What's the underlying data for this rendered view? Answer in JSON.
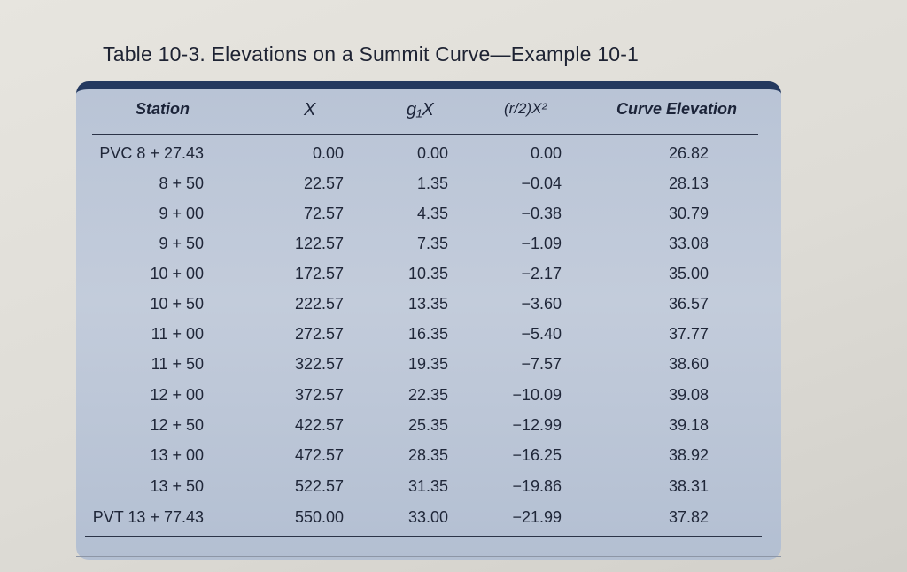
{
  "title": "Table 10-3. Elevations on a Summit Curve—Example 10-1",
  "headers": {
    "station": "Station",
    "x": "X",
    "g1x": "g₁X",
    "r2x2": "(r/2)X²",
    "curve_elevation": "Curve Elevation"
  },
  "rows": [
    {
      "station": "PVC 8 + 27.43",
      "x": "0.00",
      "g1x": "0.00",
      "r2x2": "0.00",
      "elev": "26.82"
    },
    {
      "station": "8 + 50",
      "x": "22.57",
      "g1x": "1.35",
      "r2x2": "−0.04",
      "elev": "28.13"
    },
    {
      "station": "9 + 00",
      "x": "72.57",
      "g1x": "4.35",
      "r2x2": "−0.38",
      "elev": "30.79"
    },
    {
      "station": "9 + 50",
      "x": "122.57",
      "g1x": "7.35",
      "r2x2": "−1.09",
      "elev": "33.08"
    },
    {
      "station": "10 + 00",
      "x": "172.57",
      "g1x": "10.35",
      "r2x2": "−2.17",
      "elev": "35.00"
    },
    {
      "station": "10 + 50",
      "x": "222.57",
      "g1x": "13.35",
      "r2x2": "−3.60",
      "elev": "36.57"
    },
    {
      "station": "11 + 00",
      "x": "272.57",
      "g1x": "16.35",
      "r2x2": "−5.40",
      "elev": "37.77"
    },
    {
      "station": "11 + 50",
      "x": "322.57",
      "g1x": "19.35",
      "r2x2": "−7.57",
      "elev": "38.60"
    },
    {
      "station": "12 + 00",
      "x": "372.57",
      "g1x": "22.35",
      "r2x2": "−10.09",
      "elev": "39.08"
    },
    {
      "station": "12 + 50",
      "x": "422.57",
      "g1x": "25.35",
      "r2x2": "−12.99",
      "elev": "39.18"
    },
    {
      "station": "13 + 00",
      "x": "472.57",
      "g1x": "28.35",
      "r2x2": "−16.25",
      "elev": "38.92"
    },
    {
      "station": "13 + 50",
      "x": "522.57",
      "g1x": "31.35",
      "r2x2": "−19.86",
      "elev": "38.31"
    },
    {
      "station": "PVT 13 + 77.43",
      "x": "550.00",
      "g1x": "33.00",
      "r2x2": "−21.99",
      "elev": "37.82"
    }
  ],
  "colors": {
    "panel": "#bfc9d8",
    "panel_top_border": "#24395f",
    "text": "#1f2638",
    "rule": "#2b3347"
  }
}
